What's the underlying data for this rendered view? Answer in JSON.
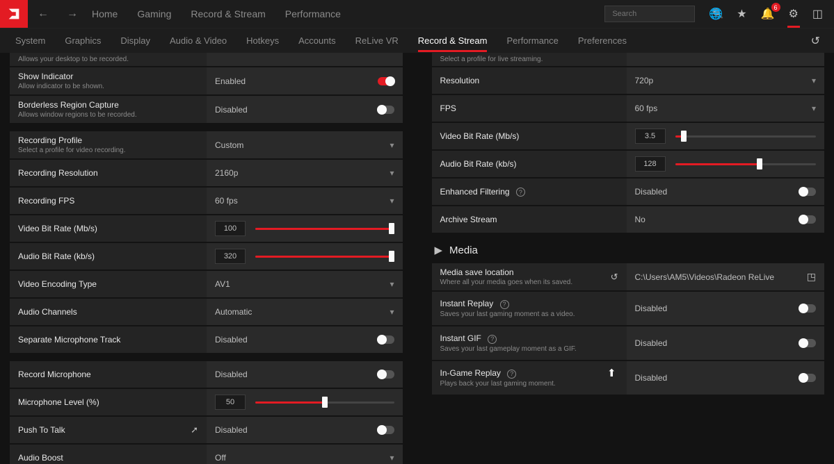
{
  "header": {
    "primary_tabs": [
      "Home",
      "Gaming",
      "Record & Stream",
      "Performance"
    ],
    "search_placeholder": "Search",
    "notification_count": "6"
  },
  "subnav": {
    "tabs": [
      "System",
      "Graphics",
      "Display",
      "Audio & Video",
      "Hotkeys",
      "Accounts",
      "ReLive VR",
      "Record & Stream",
      "Performance",
      "Preferences"
    ],
    "active_index": 7
  },
  "left": {
    "desktop_desc": "Allows your desktop to be recorded.",
    "show_indicator": {
      "title": "Show Indicator",
      "desc": "Allow indicator to be shown.",
      "value": "Enabled",
      "on": true
    },
    "borderless": {
      "title": "Borderless Region Capture",
      "desc": "Allows window regions to be recorded.",
      "value": "Disabled",
      "on": false
    },
    "rec_profile": {
      "title": "Recording Profile",
      "desc": "Select a profile for video recording.",
      "value": "Custom"
    },
    "rec_res": {
      "title": "Recording Resolution",
      "value": "2160p"
    },
    "rec_fps": {
      "title": "Recording FPS",
      "value": "60 fps"
    },
    "vbr": {
      "title": "Video Bit Rate (Mb/s)",
      "value": "100",
      "fill_pct": 98
    },
    "abr": {
      "title": "Audio Bit Rate (kb/s)",
      "value": "320",
      "fill_pct": 98
    },
    "enc": {
      "title": "Video Encoding Type",
      "value": "AV1"
    },
    "ach": {
      "title": "Audio Channels",
      "value": "Automatic"
    },
    "sep_mic": {
      "title": "Separate Microphone Track",
      "value": "Disabled",
      "on": false
    },
    "rec_mic": {
      "title": "Record Microphone",
      "value": "Disabled",
      "on": false
    },
    "mic_lvl": {
      "title": "Microphone Level (%)",
      "value": "50",
      "fill_pct": 50
    },
    "ptt": {
      "title": "Push To Talk",
      "value": "Disabled",
      "on": false
    },
    "aboost": {
      "title": "Audio Boost",
      "value": "Off"
    }
  },
  "right": {
    "stream_desc": "Select a profile for live streaming.",
    "s_res": {
      "title": "Resolution",
      "value": "720p"
    },
    "s_fps": {
      "title": "FPS",
      "value": "60 fps"
    },
    "s_vbr": {
      "title": "Video Bit Rate (Mb/s)",
      "value": "3.5",
      "fill_pct": 6
    },
    "s_abr": {
      "title": "Audio Bit Rate (kb/s)",
      "value": "128",
      "fill_pct": 60
    },
    "enh": {
      "title": "Enhanced Filtering",
      "value": "Disabled",
      "on": false
    },
    "arc": {
      "title": "Archive Stream",
      "value": "No",
      "on": false
    },
    "media_header": "Media",
    "media_loc": {
      "title": "Media save location",
      "desc": "Where all your media goes when its saved.",
      "value": "C:\\Users\\AM5\\Videos\\Radeon ReLive"
    },
    "ireplay": {
      "title": "Instant Replay",
      "desc": "Saves your last gaming moment as a video.",
      "value": "Disabled",
      "on": false
    },
    "igif": {
      "title": "Instant GIF",
      "desc": "Saves your last gameplay moment as a GIF.",
      "value": "Disabled",
      "on": false
    },
    "igreplay": {
      "title": "In-Game Replay",
      "desc": "Plays back your last gaming moment.",
      "value": "Disabled",
      "on": false
    }
  }
}
